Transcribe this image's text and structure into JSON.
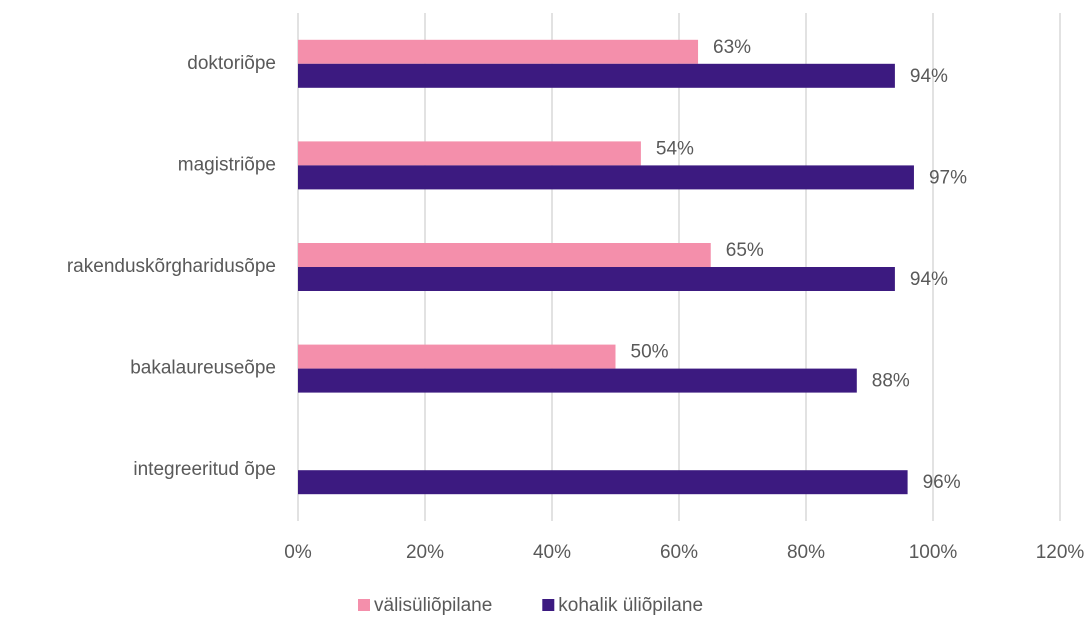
{
  "chart_data": {
    "type": "hbar",
    "categories": [
      "doktoriõpe",
      "magistriõpe",
      "rakenduskõrgharidusõpe",
      "bakalaureuseõpe",
      "integreeritud õpe"
    ],
    "series": [
      {
        "name": "välisüliõpilane",
        "color": "#f48fab",
        "values": [
          63,
          54,
          65,
          50,
          null
        ],
        "value_labels": [
          "63%",
          "54%",
          "65%",
          "50%",
          null
        ]
      },
      {
        "name": "kohalik üliõpilane",
        "color": "#3c1a80",
        "values": [
          94,
          97,
          94,
          88,
          96
        ],
        "value_labels": [
          "94%",
          "97%",
          "94%",
          "88%",
          "96%"
        ]
      }
    ],
    "xlim": [
      0,
      120
    ],
    "xticks": [
      {
        "value": 0,
        "label": "0%"
      },
      {
        "value": 20,
        "label": "20%"
      },
      {
        "value": 40,
        "label": "40%"
      },
      {
        "value": 60,
        "label": "60%"
      },
      {
        "value": 80,
        "label": "80%"
      },
      {
        "value": 100,
        "label": "100%"
      },
      {
        "value": 120,
        "label": "120%"
      }
    ],
    "grid": true,
    "legend": "bottom"
  }
}
